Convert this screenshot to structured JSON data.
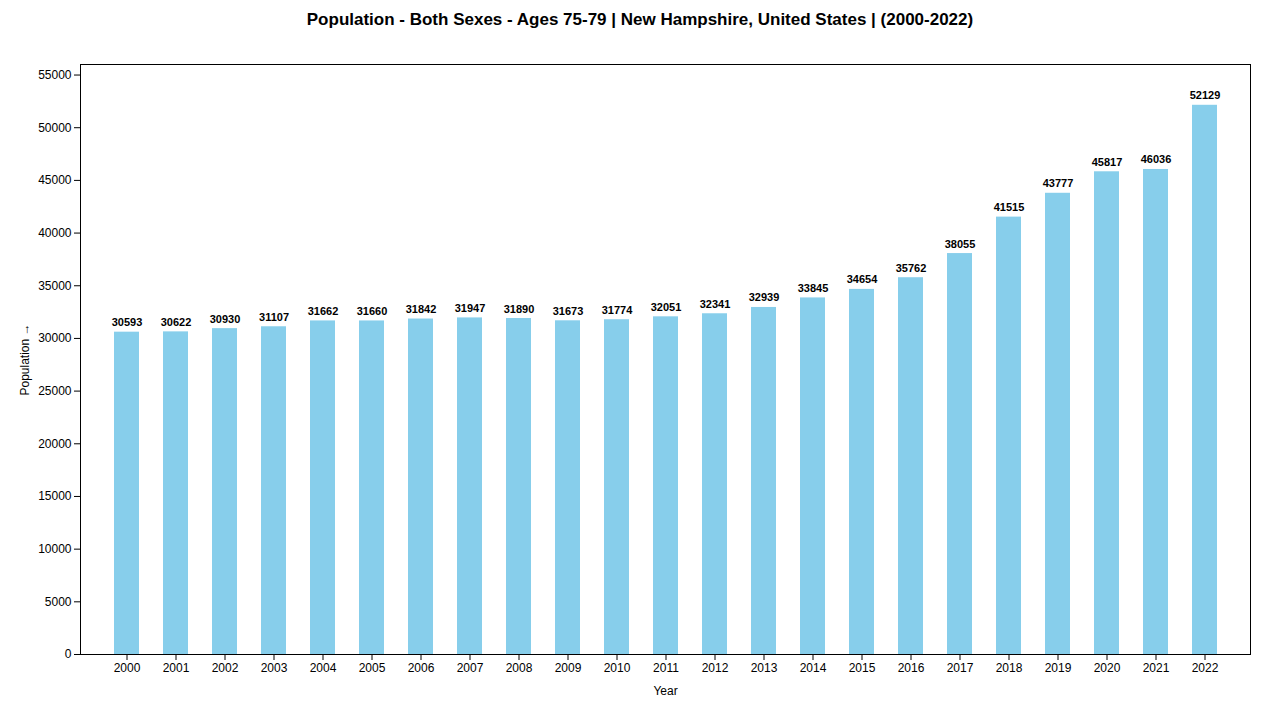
{
  "chart_data": {
    "type": "bar",
    "title": "Population - Both Sexes - Ages 75-79 | New Hampshire, United States |  (2000-2022)",
    "xlabel": "Year",
    "ylabel": "Population",
    "categories": [
      "2000",
      "2001",
      "2002",
      "2003",
      "2004",
      "2005",
      "2006",
      "2007",
      "2008",
      "2009",
      "2010",
      "2011",
      "2012",
      "2013",
      "2014",
      "2015",
      "2016",
      "2017",
      "2018",
      "2019",
      "2020",
      "2021",
      "2022"
    ],
    "values": [
      30593,
      30622,
      30930,
      31107,
      31662,
      31660,
      31842,
      31947,
      31890,
      31673,
      31774,
      32051,
      32341,
      32939,
      33845,
      34654,
      35762,
      38055,
      41515,
      43777,
      45817,
      46036,
      52129
    ],
    "color": "#87CEEB",
    "ylim": [
      0,
      56000
    ],
    "yticks": [
      0,
      5000,
      10000,
      15000,
      20000,
      25000,
      30000,
      35000,
      40000,
      45000,
      50000,
      55000
    ],
    "grid": false,
    "data_labels": true
  }
}
